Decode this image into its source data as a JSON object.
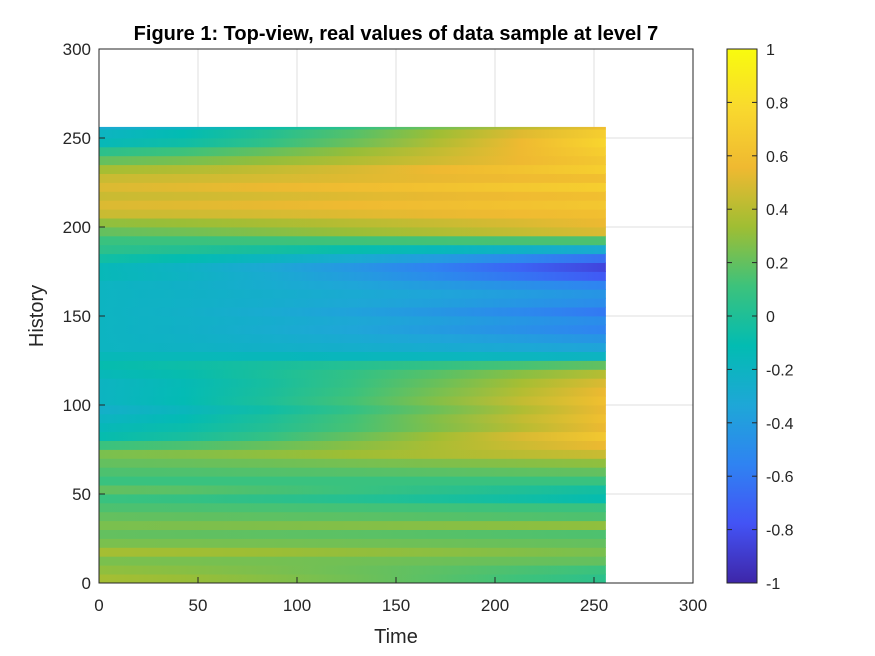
{
  "chart_data": {
    "type": "heatmap",
    "title": "Figure 1: Top-view, real values of data sample at level 7",
    "xlabel": "Time",
    "ylabel": "History",
    "xlim": [
      0,
      300
    ],
    "ylim": [
      0,
      300
    ],
    "x_ticks": [
      "0",
      "50",
      "100",
      "150",
      "200",
      "250",
      "300"
    ],
    "y_ticks": [
      "0",
      "50",
      "100",
      "150",
      "200",
      "250",
      "300"
    ],
    "grid": true,
    "colormap": "parula",
    "colorbar": {
      "range": [
        -1,
        1
      ],
      "ticks": [
        "-1",
        "-0.8",
        "-0.6",
        "-0.4",
        "-0.2",
        "0",
        "0.2",
        "0.4",
        "0.6",
        "0.8",
        "1"
      ],
      "stops": [
        "#3e26a8",
        "#4353f5",
        "#2f83f2",
        "#1ea7d7",
        "#02bcb2",
        "#3cc27c",
        "#9fbe33",
        "#efb931",
        "#f9d92e",
        "#f9fb0e"
      ]
    },
    "data_extent": {
      "x": [
        0,
        256
      ],
      "y": [
        0,
        256
      ]
    },
    "rows": [
      {
        "y": 0,
        "v0": 0.35,
        "v1": 0.05
      },
      {
        "y": 5,
        "v0": 0.3,
        "v1": 0.1
      },
      {
        "y": 10,
        "v0": 0.25,
        "v1": 0.2
      },
      {
        "y": 15,
        "v0": 0.35,
        "v1": 0.25
      },
      {
        "y": 20,
        "v0": 0.25,
        "v1": 0.2
      },
      {
        "y": 25,
        "v0": 0.2,
        "v1": 0.15
      },
      {
        "y": 30,
        "v0": 0.25,
        "v1": 0.3
      },
      {
        "y": 35,
        "v0": 0.2,
        "v1": 0.15
      },
      {
        "y": 40,
        "v0": 0.15,
        "v1": 0.1
      },
      {
        "y": 45,
        "v0": 0.1,
        "v1": -0.1
      },
      {
        "y": 50,
        "v0": 0.2,
        "v1": -0.05
      },
      {
        "y": 55,
        "v0": 0.1,
        "v1": 0.1
      },
      {
        "y": 60,
        "v0": 0.15,
        "v1": 0.2
      },
      {
        "y": 65,
        "v0": 0.2,
        "v1": 0.3
      },
      {
        "y": 70,
        "v0": 0.25,
        "v1": 0.45
      },
      {
        "y": 75,
        "v0": 0.1,
        "v1": 0.55
      },
      {
        "y": 80,
        "v0": -0.1,
        "v1": 0.65
      },
      {
        "y": 85,
        "v0": -0.15,
        "v1": 0.55
      },
      {
        "y": 90,
        "v0": -0.2,
        "v1": 0.6
      },
      {
        "y": 95,
        "v0": -0.25,
        "v1": 0.55
      },
      {
        "y": 100,
        "v0": -0.2,
        "v1": 0.6
      },
      {
        "y": 105,
        "v0": -0.2,
        "v1": 0.55
      },
      {
        "y": 110,
        "v0": -0.2,
        "v1": 0.5
      },
      {
        "y": 115,
        "v0": -0.15,
        "v1": 0.4
      },
      {
        "y": 120,
        "v0": -0.1,
        "v1": 0.2
      },
      {
        "y": 125,
        "v0": -0.15,
        "v1": -0.2
      },
      {
        "y": 130,
        "v0": -0.2,
        "v1": -0.35
      },
      {
        "y": 135,
        "v0": -0.2,
        "v1": -0.45
      },
      {
        "y": 140,
        "v0": -0.2,
        "v1": -0.55
      },
      {
        "y": 145,
        "v0": -0.2,
        "v1": -0.5
      },
      {
        "y": 150,
        "v0": -0.2,
        "v1": -0.6
      },
      {
        "y": 155,
        "v0": -0.2,
        "v1": -0.5
      },
      {
        "y": 160,
        "v0": -0.2,
        "v1": -0.45
      },
      {
        "y": 165,
        "v0": -0.2,
        "v1": -0.55
      },
      {
        "y": 170,
        "v0": -0.15,
        "v1": -0.75
      },
      {
        "y": 175,
        "v0": -0.15,
        "v1": -0.85
      },
      {
        "y": 180,
        "v0": -0.05,
        "v1": -0.65
      },
      {
        "y": 185,
        "v0": 0.05,
        "v1": -0.3
      },
      {
        "y": 190,
        "v0": 0.1,
        "v1": 0.15
      },
      {
        "y": 195,
        "v0": 0.2,
        "v1": 0.5
      },
      {
        "y": 200,
        "v0": 0.3,
        "v1": 0.55
      },
      {
        "y": 205,
        "v0": 0.45,
        "v1": 0.6
      },
      {
        "y": 210,
        "v0": 0.5,
        "v1": 0.65
      },
      {
        "y": 215,
        "v0": 0.45,
        "v1": 0.6
      },
      {
        "y": 220,
        "v0": 0.5,
        "v1": 0.7
      },
      {
        "y": 225,
        "v0": 0.45,
        "v1": 0.6
      },
      {
        "y": 230,
        "v0": 0.35,
        "v1": 0.7
      },
      {
        "y": 235,
        "v0": 0.2,
        "v1": 0.65
      },
      {
        "y": 240,
        "v0": 0.05,
        "v1": 0.7
      },
      {
        "y": 245,
        "v0": -0.15,
        "v1": 0.75
      },
      {
        "y": 250,
        "v0": -0.2,
        "v1": 0.7
      },
      {
        "y": 255,
        "v0": -0.3,
        "v1": 0.6
      }
    ]
  }
}
